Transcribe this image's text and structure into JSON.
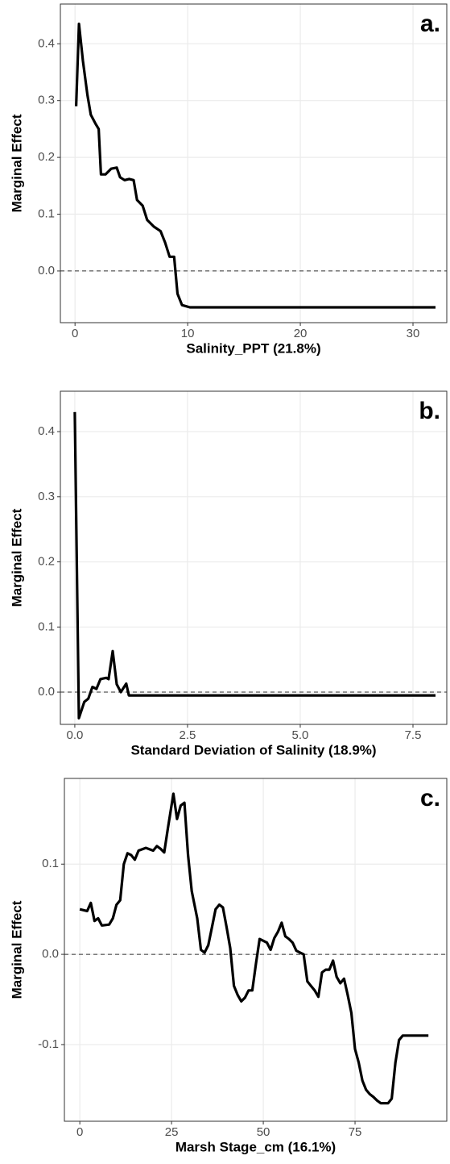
{
  "chart_data": [
    {
      "type": "line",
      "panel_label": "a.",
      "x_label": "Salinity_PPT (21.8%)",
      "y_label": "Marginal Effect",
      "color": "#000000",
      "grid": true,
      "hline": 0,
      "x": [
        0.1,
        0.35,
        0.7,
        1.1,
        1.4,
        1.8,
        2.1,
        2.3,
        2.7,
        3.2,
        3.7,
        4.0,
        4.4,
        4.8,
        5.2,
        5.5,
        6.0,
        6.4,
        7.0,
        7.6,
        8.0,
        8.4,
        8.8,
        9.1,
        9.5,
        10.2,
        32
      ],
      "values": [
        0.29,
        0.435,
        0.37,
        0.31,
        0.275,
        0.26,
        0.25,
        0.17,
        0.17,
        0.18,
        0.182,
        0.165,
        0.16,
        0.162,
        0.16,
        0.125,
        0.115,
        0.09,
        0.078,
        0.07,
        0.05,
        0.025,
        0.025,
        -0.04,
        -0.06,
        -0.064,
        -0.064
      ],
      "xlim": [
        -1.3,
        33
      ],
      "ylim": [
        -0.091,
        0.47
      ],
      "xticks": [
        0,
        10,
        20,
        30
      ],
      "yticks": [
        {
          "value": 0,
          "label": "0.0"
        },
        0.1,
        0.2,
        0.3,
        0.4
      ]
    },
    {
      "type": "line",
      "panel_label": "b.",
      "x_label": "Standard Deviation of Salinity (18.9%)",
      "y_label": "Marginal Effect",
      "color": "#000000",
      "grid": true,
      "hline": 0,
      "x": [
        0.0,
        0.09,
        0.21,
        0.3,
        0.39,
        0.48,
        0.57,
        0.7,
        0.75,
        0.84,
        0.93,
        1.02,
        1.14,
        1.2,
        8.0
      ],
      "values": [
        0.43,
        -0.04,
        -0.015,
        -0.01,
        0.008,
        0.005,
        0.02,
        0.022,
        0.02,
        0.063,
        0.012,
        0.0,
        0.013,
        -0.005,
        -0.005
      ],
      "xlim": [
        -0.32,
        8.25
      ],
      "ylim": [
        -0.0495,
        0.462
      ],
      "xticks": [
        {
          "value": 0,
          "label": "0.0"
        },
        2.5,
        {
          "value": 5,
          "label": "5.0"
        },
        7.5
      ],
      "yticks": [
        {
          "value": 0,
          "label": "0.0"
        },
        0.1,
        0.2,
        0.3,
        0.4
      ]
    },
    {
      "type": "line",
      "panel_label": "c.",
      "x_label": "Marsh Stage_cm (16.1%)",
      "y_label": "Marginal Effect",
      "color": "#000000",
      "grid": true,
      "hline": 0,
      "x": [
        0,
        2,
        3,
        4,
        5,
        6,
        8,
        9,
        10,
        11,
        12,
        13,
        14,
        15,
        16,
        18,
        20,
        21,
        22,
        23,
        24,
        25.5,
        26.5,
        27.5,
        28.5,
        29.5,
        30.5,
        32,
        33,
        34,
        35,
        36,
        37,
        38,
        39,
        40,
        41,
        42,
        43,
        44,
        45,
        46,
        47,
        48,
        49,
        50,
        51,
        52,
        53,
        54,
        55,
        56,
        57,
        58,
        59,
        60,
        61,
        62,
        63,
        64,
        65,
        66,
        67,
        68,
        69,
        70,
        71,
        72,
        73,
        74,
        75,
        76,
        77,
        78,
        79,
        80,
        81,
        82,
        84,
        85,
        86,
        87,
        88,
        95
      ],
      "values": [
        0.05,
        0.048,
        0.057,
        0.037,
        0.04,
        0.032,
        0.033,
        0.04,
        0.055,
        0.06,
        0.1,
        0.112,
        0.11,
        0.105,
        0.115,
        0.118,
        0.115,
        0.12,
        0.117,
        0.113,
        0.14,
        0.178,
        0.15,
        0.165,
        0.168,
        0.11,
        0.07,
        0.04,
        0.005,
        0.002,
        0.01,
        0.03,
        0.05,
        0.055,
        0.052,
        0.03,
        0.007,
        -0.035,
        -0.045,
        -0.052,
        -0.048,
        -0.04,
        -0.04,
        -0.01,
        0.017,
        0.015,
        0.013,
        0.005,
        0.018,
        0.025,
        0.035,
        0.02,
        0.017,
        0.013,
        0.004,
        0.002,
        0,
        -0.03,
        -0.035,
        -0.04,
        -0.047,
        -0.02,
        -0.017,
        -0.017,
        -0.007,
        -0.025,
        -0.032,
        -0.027,
        -0.045,
        -0.065,
        -0.105,
        -0.12,
        -0.14,
        -0.15,
        -0.155,
        -0.158,
        -0.162,
        -0.165,
        -0.165,
        -0.16,
        -0.12,
        -0.095,
        -0.09,
        -0.09
      ],
      "xlim": [
        -4.2,
        100
      ],
      "ylim": [
        -0.185,
        0.195
      ],
      "xticks": [
        0,
        25,
        50,
        75
      ],
      "yticks": [
        -0.1,
        {
          "value": 0,
          "label": "0.0"
        },
        0.1
      ]
    }
  ]
}
